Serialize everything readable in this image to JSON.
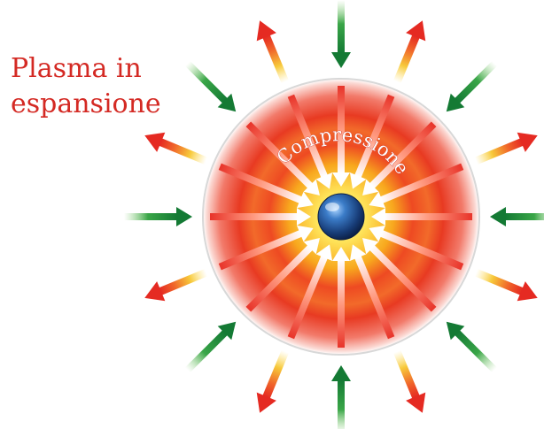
{
  "labels": {
    "plasma_line1": "Plasma in",
    "plasma_line2": "espansione",
    "compression": "Compressione"
  },
  "colors": {
    "label_red": "#d42a24",
    "arrow_green": "#1f8a3a",
    "arrow_red": "#e8342a",
    "arrow_yellow": "#f6d23a",
    "sphere_outer": "#e83a22",
    "sphere_mid": "#f47b20",
    "sphere_core": "#ffe45a",
    "capsule_blue": "#1a3f7a"
  },
  "icons": {
    "expanding_arrow": "arrow-outward-icon",
    "incoming_arrow": "arrow-inward-icon",
    "compression_arrow": "arrow-center-icon",
    "target": "fuel-capsule-icon"
  }
}
